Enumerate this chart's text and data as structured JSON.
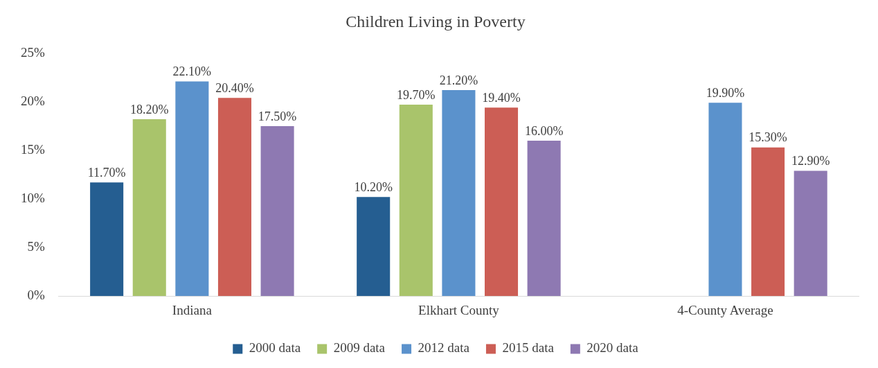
{
  "chart_data": {
    "type": "bar",
    "title": "Children Living in Poverty",
    "categories": [
      "Indiana",
      "Elkhart County",
      "4-County Average"
    ],
    "series": [
      {
        "name": "2000 data",
        "color": "#255e91",
        "values": [
          11.7,
          10.2,
          null
        ],
        "value_labels": [
          "11.70%",
          "10.20%",
          null
        ]
      },
      {
        "name": "2009 data",
        "color": "#a9c46b",
        "values": [
          18.2,
          19.7,
          null
        ],
        "value_labels": [
          "18.20%",
          "19.70%",
          null
        ]
      },
      {
        "name": "2012 data",
        "color": "#5b92cc",
        "values": [
          22.1,
          21.2,
          19.9
        ],
        "value_labels": [
          "22.10%",
          "21.20%",
          "19.90%"
        ]
      },
      {
        "name": "2015 data",
        "color": "#cc5e55",
        "values": [
          20.4,
          19.4,
          15.3
        ],
        "value_labels": [
          "20.40%",
          "19.40%",
          "15.30%"
        ]
      },
      {
        "name": "2020 data",
        "color": "#8e79b2",
        "values": [
          17.5,
          16.0,
          12.9
        ],
        "value_labels": [
          "17.50%",
          "16.00%",
          "12.90%"
        ]
      }
    ],
    "ylim": [
      0,
      25
    ],
    "yticks": [
      {
        "value": 0,
        "label": "0%"
      },
      {
        "value": 5,
        "label": "5%"
      },
      {
        "value": 10,
        "label": "10%"
      },
      {
        "value": 15,
        "label": "15%"
      },
      {
        "value": 20,
        "label": "20%"
      },
      {
        "value": 25,
        "label": "25%"
      }
    ],
    "grid": false,
    "legend": "bottom"
  }
}
